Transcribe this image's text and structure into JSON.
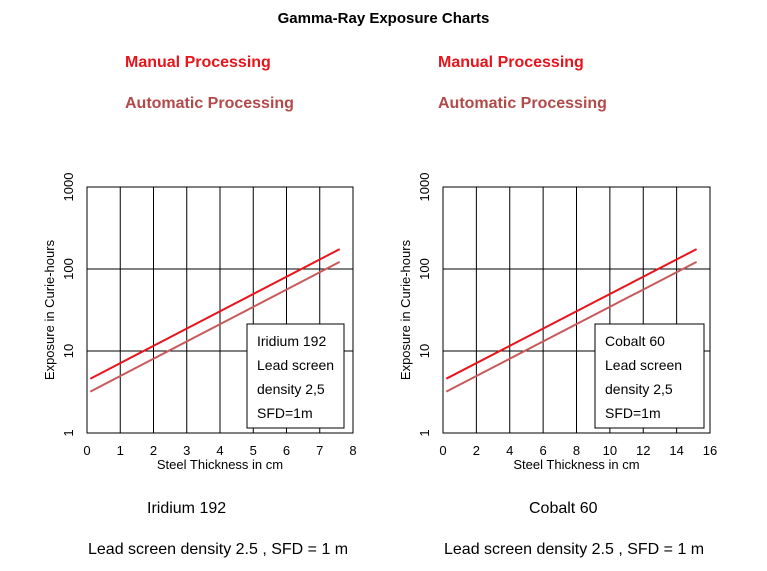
{
  "title": "Gamma-Ray Exposure Charts",
  "legend": {
    "manual": "Manual Processing",
    "automatic": "Automatic Processing"
  },
  "colors": {
    "manual": "#e8141c",
    "automatic": "#c85a5a",
    "grid": "#000000"
  },
  "captions": [
    {
      "source": "Iridium 192",
      "conditions": "Lead screen density 2.5  , SFD = 1 m"
    },
    {
      "source": "Cobalt 60",
      "conditions": "Lead screen density 2.5  , SFD = 1 m"
    }
  ],
  "chart_data": [
    {
      "type": "line",
      "title": "",
      "xlabel": "Steel Thickness in cm",
      "ylabel": "Exposure in Curie-hours",
      "xlim": [
        0,
        8
      ],
      "xticks": [
        0,
        1,
        2,
        3,
        4,
        5,
        6,
        7,
        8
      ],
      "xtick_labels": [
        "0",
        "1",
        "2",
        "3",
        "4",
        "5",
        "6",
        "7",
        "8"
      ],
      "yscale": "log",
      "ylim": [
        1,
        1000
      ],
      "yticks": [
        1,
        10,
        100,
        1000
      ],
      "ytick_labels": [
        "1",
        "10",
        "100",
        "1000"
      ],
      "grid": true,
      "annotation": [
        "Iridium 192",
        "Lead screen",
        "density 2,5",
        "SFD=1m"
      ],
      "series": [
        {
          "name": "Manual Processing",
          "x": [
            0.1,
            7.6
          ],
          "y": [
            4.6,
            175
          ]
        },
        {
          "name": "Automatic Processing",
          "x": [
            0.1,
            7.6
          ],
          "y": [
            3.2,
            122
          ]
        }
      ]
    },
    {
      "type": "line",
      "title": "",
      "xlabel": "Steel Thickness in cm",
      "ylabel": "Exposure in Curie-hours",
      "xlim": [
        0,
        16
      ],
      "xticks": [
        0,
        2,
        4,
        6,
        8,
        10,
        12,
        14,
        16
      ],
      "xtick_labels": [
        "0",
        "2",
        "4",
        "6",
        "8",
        "10",
        "12",
        "14",
        "16"
      ],
      "yscale": "log",
      "ylim": [
        1,
        1000
      ],
      "yticks": [
        1,
        10,
        100,
        1000
      ],
      "ytick_labels": [
        "1",
        "10",
        "100",
        "1000"
      ],
      "grid": true,
      "annotation": [
        "Cobalt 60",
        "Lead screen",
        "density 2,5",
        "SFD=1m"
      ],
      "series": [
        {
          "name": "Manual Processing",
          "x": [
            0.2,
            15.2
          ],
          "y": [
            4.6,
            175
          ]
        },
        {
          "name": "Automatic Processing",
          "x": [
            0.2,
            15.2
          ],
          "y": [
            3.2,
            122
          ]
        }
      ]
    }
  ]
}
